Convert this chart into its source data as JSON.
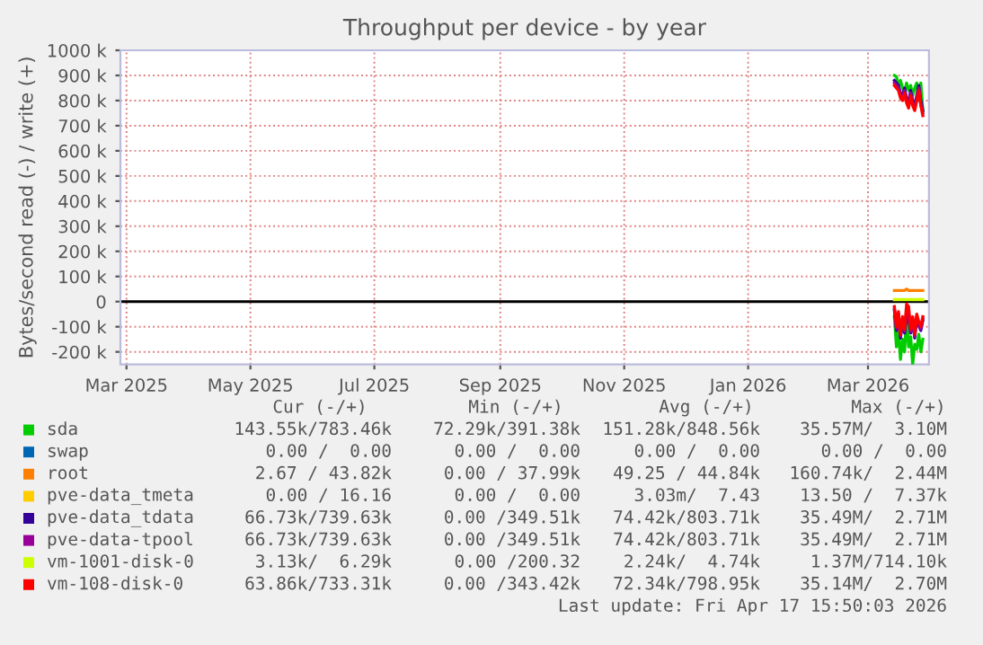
{
  "chart_data": {
    "type": "line",
    "title": "Throughput per device - by year",
    "ylabel": "Bytes/second read (-) / write (+)",
    "x": [
      "2026-03-14",
      "2026-03-15",
      "2026-03-16",
      "2026-03-17",
      "2026-03-18",
      "2026-03-19",
      "2026-03-20",
      "2026-03-21",
      "2026-03-22",
      "2026-03-23",
      "2026-03-24",
      "2026-03-25",
      "2026-03-26",
      "2026-03-27",
      "2026-03-28"
    ],
    "series": [
      {
        "name": "sda",
        "color": "#00cc00",
        "values": [
          900,
          895,
          860,
          880,
          850,
          830,
          870,
          840,
          860,
          820,
          850,
          870,
          800,
          870,
          760
        ]
      },
      {
        "color": "#00cc00",
        "values": [
          -60,
          -180,
          -120,
          -230,
          -150,
          -200,
          -60,
          -180,
          -140,
          -250,
          -170,
          -190,
          -130,
          -200,
          -150
        ]
      },
      {
        "name": "swap",
        "color": "#0066b3",
        "values": [
          null,
          null,
          null,
          null,
          null,
          null,
          null,
          null,
          null,
          null,
          null,
          null,
          null,
          null,
          null
        ]
      },
      {
        "name": "root",
        "color": "#ff8000",
        "values": [
          44,
          44,
          44,
          44,
          44,
          44,
          50,
          44,
          44,
          44,
          44,
          44,
          44,
          44,
          44
        ]
      },
      {
        "name": "pve-data_tmeta",
        "color": "#ffcc00",
        "values": [
          null,
          null,
          null,
          null,
          null,
          null,
          null,
          null,
          null,
          null,
          null,
          null,
          null,
          null,
          null
        ]
      },
      {
        "name": "pve-data_tdata",
        "color": "#330099",
        "values": [
          880,
          870,
          860,
          830,
          820,
          850,
          810,
          790,
          840,
          800,
          780,
          820,
          860,
          800,
          760
        ]
      },
      {
        "color": "#330099",
        "values": [
          -35,
          -115,
          -55,
          -145,
          -75,
          -125,
          -55,
          -65,
          -125,
          -75,
          -145,
          -65,
          -95,
          -115,
          -75
        ]
      },
      {
        "name": "pve-data-tpool",
        "color": "#990099",
        "values": [
          870,
          860,
          850,
          820,
          810,
          840,
          800,
          780,
          830,
          790,
          770,
          810,
          850,
          790,
          750
        ]
      },
      {
        "color": "#990099",
        "values": [
          -28,
          -108,
          -48,
          -138,
          -68,
          -118,
          -40,
          -45,
          -118,
          -68,
          -138,
          -58,
          -88,
          -108,
          -68
        ]
      },
      {
        "name": "vm-1001-disk-0",
        "color": "#ccff00",
        "values": [
          8,
          8,
          8,
          8,
          8,
          8,
          8,
          8,
          8,
          8,
          8,
          8,
          8,
          8,
          8
        ]
      },
      {
        "name": "vm-108-disk-0",
        "color": "#ff0000",
        "values": [
          860,
          850,
          840,
          810,
          800,
          830,
          790,
          770,
          820,
          780,
          760,
          800,
          840,
          780,
          740
        ]
      },
      {
        "color": "#ff0000",
        "values": [
          -20,
          -100,
          -40,
          -130,
          -60,
          -110,
          -10,
          -20,
          -110,
          -60,
          -130,
          -50,
          -80,
          -100,
          -60
        ]
      }
    ],
    "xlim": [
      "2025-02-26",
      "2026-03-31"
    ],
    "xticks": [
      {
        "value": "2025-03-01",
        "label": "Mar 2025"
      },
      {
        "value": "2025-05-01",
        "label": "May 2025"
      },
      {
        "value": "2025-07-01",
        "label": "Jul 2025"
      },
      {
        "value": "2025-09-01",
        "label": "Sep 2025"
      },
      {
        "value": "2025-11-01",
        "label": "Nov 2025"
      },
      {
        "value": "2026-01-01",
        "label": "Jan 2026"
      },
      {
        "value": "2026-03-01",
        "label": "Mar 2026"
      }
    ],
    "ylim": [
      -250,
      1000
    ],
    "yticks": [
      {
        "value": 1000,
        "label": "1000 k"
      },
      {
        "value": 900,
        "label": "900 k"
      },
      {
        "value": 800,
        "label": "800 k"
      },
      {
        "value": 700,
        "label": "700 k"
      },
      {
        "value": 600,
        "label": "600 k"
      },
      {
        "value": 500,
        "label": "500 k"
      },
      {
        "value": 400,
        "label": "400 k"
      },
      {
        "value": 300,
        "label": "300 k"
      },
      {
        "value": 200,
        "label": "200 k"
      },
      {
        "value": 100,
        "label": "100 k"
      },
      0,
      {
        "value": -100,
        "label": "-100 k"
      },
      {
        "value": -200,
        "label": "-200 k"
      }
    ],
    "ref_lines": [
      {
        "axis": "y",
        "value": 0,
        "color": "#000000"
      }
    ],
    "grid": true,
    "legend": "bottom",
    "annotations": [
      "Cur (-/+)",
      "Min (-/+)",
      "Avg (-/+)",
      "Max (-/+)",
      "143.55k/783.46k",
      "72.29k/391.38k",
      "151.28k/848.56k",
      "35.57M/  3.10M",
      "0.00 /  0.00",
      "0.00 /  0.00",
      "0.00 /  0.00",
      "0.00 /  0.00",
      "2.67 / 43.82k",
      "0.00 / 37.99k",
      "49.25 / 44.84k",
      "160.74k/  2.44M",
      "0.00 / 16.16",
      "0.00 /  0.00",
      "3.03m/  7.43",
      "13.50 /  7.37k",
      "66.73k/739.63k",
      "0.00 /349.51k",
      "74.42k/803.71k",
      "35.49M/  2.71M",
      "66.73k/739.63k",
      "0.00 /349.51k",
      "74.42k/803.71k",
      "35.49M/  2.71M",
      "3.13k/  6.29k",
      "0.00 /200.32",
      "2.24k/  4.74k",
      "1.37M/714.10k",
      "63.86k/733.31k",
      "0.00 /343.42k",
      "72.34k/798.95k",
      "35.14M/  2.70M",
      "Last update: Fri Apr 17 15:50:03 2026"
    ]
  }
}
